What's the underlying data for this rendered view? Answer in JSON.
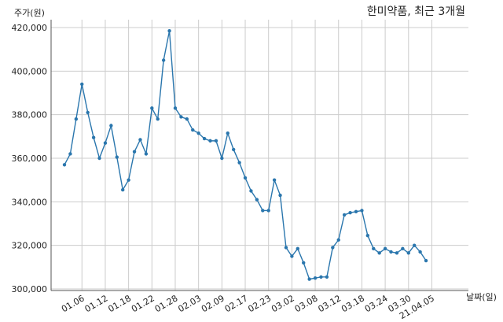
{
  "chart_data": {
    "type": "line",
    "title": "한미약품, 최근 3개월",
    "ylabel": "주가(원)",
    "xlabel": "날짜(일)",
    "ylim": [
      300000,
      420000
    ],
    "yticks": [
      300000,
      320000,
      340000,
      360000,
      380000,
      400000,
      420000
    ],
    "ytick_labels": [
      "300,000",
      "320,000",
      "340,000",
      "360,000",
      "380,000",
      "400,000",
      "420,000"
    ],
    "xticks": [
      3,
      7,
      11,
      15,
      19,
      23,
      27,
      31,
      35,
      39,
      43,
      47,
      51,
      55,
      59,
      63
    ],
    "xtick_labels": [
      "01.06",
      "01.12",
      "01.18",
      "01.22",
      "01.28",
      "02.03",
      "02.09",
      "02.17",
      "02.23",
      "03.02",
      "03.08",
      "03.12",
      "03.18",
      "03.24",
      "03.30",
      "21.04.05"
    ],
    "grid": true,
    "color": "#2a76ad",
    "series": [
      {
        "values": [
          357000,
          362000,
          378000,
          394000,
          381000,
          369500,
          360000,
          367000,
          375000,
          360500,
          345500,
          350000,
          363000,
          368500,
          362000,
          383000,
          378000,
          405000,
          418500,
          383000,
          379000,
          378000,
          373000,
          371500,
          369000,
          368000,
          368000,
          360000,
          371500,
          364000,
          358000,
          351000,
          345000,
          341000,
          336000,
          336000,
          350000,
          343000,
          319000,
          315000,
          318500,
          312000,
          304500,
          305000,
          305500,
          305500,
          319000,
          322500,
          334000,
          335000,
          335500,
          336000,
          324500,
          318500,
          316500,
          318500,
          317000,
          316500,
          318500,
          316500,
          320000,
          317000,
          313000
        ]
      }
    ]
  }
}
